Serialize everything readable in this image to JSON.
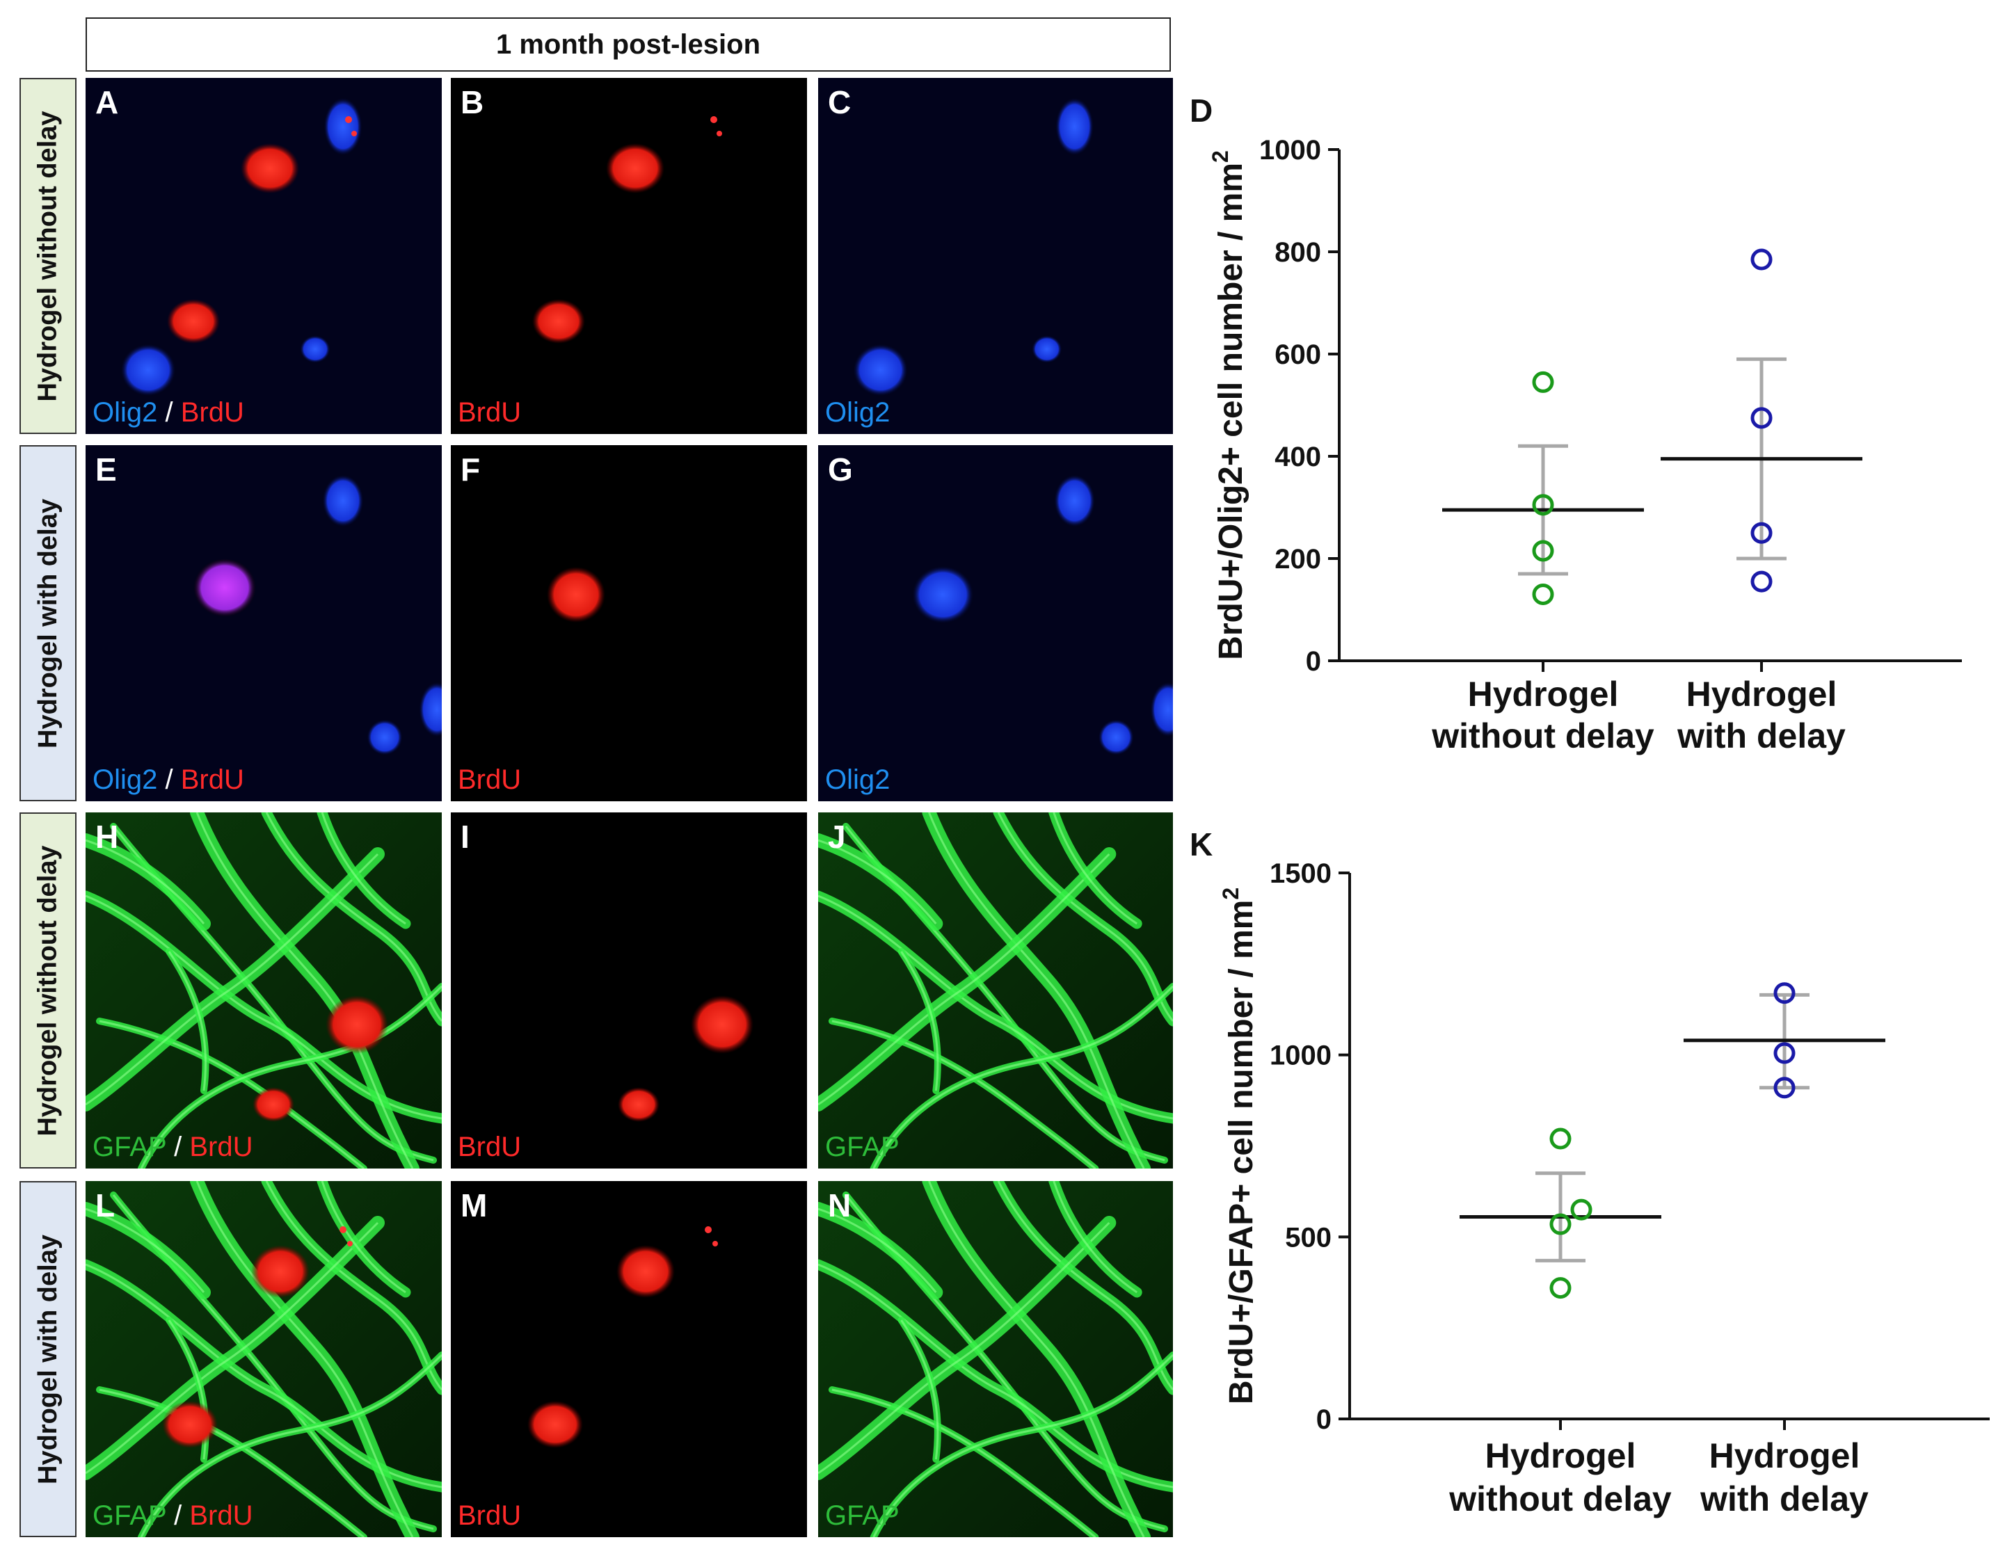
{
  "header": {
    "title": "1 month post-lesion"
  },
  "row_labels": [
    "Hydrogel without delay",
    "Hydrogel with delay",
    "Hydrogel without delay",
    "Hydrogel with delay"
  ],
  "panels": [
    {
      "letter": "A",
      "stain": [
        "Olig2",
        " / ",
        "BrdU"
      ],
      "type": "merge_blue"
    },
    {
      "letter": "B",
      "stain": [
        "BrdU"
      ],
      "type": "red"
    },
    {
      "letter": "C",
      "stain": [
        "Olig2"
      ],
      "type": "blue"
    },
    {
      "letter": "E",
      "stain": [
        "Olig2",
        " / ",
        "BrdU"
      ],
      "type": "merge_blue"
    },
    {
      "letter": "F",
      "stain": [
        "BrdU"
      ],
      "type": "red"
    },
    {
      "letter": "G",
      "stain": [
        "Olig2"
      ],
      "type": "blue"
    },
    {
      "letter": "H",
      "stain": [
        "GFAP",
        " / ",
        "BrdU"
      ],
      "type": "merge_green"
    },
    {
      "letter": "I",
      "stain": [
        "BrdU"
      ],
      "type": "red"
    },
    {
      "letter": "J",
      "stain": [
        "GFAP"
      ],
      "type": "green"
    },
    {
      "letter": "L",
      "stain": [
        "GFAP",
        " / ",
        "BrdU"
      ],
      "type": "merge_green"
    },
    {
      "letter": "M",
      "stain": [
        "BrdU"
      ],
      "type": "red"
    },
    {
      "letter": "N",
      "stain": [
        "GFAP"
      ],
      "type": "green"
    }
  ],
  "colors": {
    "olig2": "#1f8ff0",
    "brdu": "#ff2a2a",
    "gfap": "#2ebd3a",
    "series_without_delay": "#1a9a1a",
    "series_with_delay": "#1a1aa8",
    "error_bar": "#a8a8a8",
    "mean_line": "#111111"
  },
  "chart_data": [
    {
      "panel_letter": "D",
      "type": "scatter",
      "title": "",
      "ylabel": "BrdU+/Olig2+ cell number / mm",
      "ylabel_superscript": "2",
      "ylim": [
        0,
        1000
      ],
      "yticks": [
        0,
        200,
        400,
        600,
        800,
        1000
      ],
      "categories": [
        [
          "Hydrogel",
          "without delay"
        ],
        [
          "Hydrogel",
          "with delay"
        ]
      ],
      "series": [
        {
          "points": [
            545,
            305,
            215,
            130
          ],
          "mean": 295,
          "err_low": 170,
          "err_high": 420
        },
        {
          "points": [
            785,
            475,
            250,
            155
          ],
          "mean": 395,
          "err_low": 200,
          "err_high": 590
        }
      ]
    },
    {
      "panel_letter": "K",
      "type": "scatter",
      "title": "",
      "ylabel": "BrdU+/GFAP+ cell number / mm",
      "ylabel_superscript": "2",
      "ylim": [
        0,
        1500
      ],
      "yticks": [
        0,
        500,
        1000,
        1500
      ],
      "categories": [
        [
          "Hydrogel",
          "without delay"
        ],
        [
          "Hydrogel",
          "with delay"
        ]
      ],
      "series": [
        {
          "points": [
            770,
            575,
            535,
            360
          ],
          "mean": 555,
          "err_low": 435,
          "err_high": 675
        },
        {
          "points": [
            1170,
            1005,
            910
          ],
          "mean": 1040,
          "err_low": 910,
          "err_high": 1165
        }
      ]
    }
  ]
}
